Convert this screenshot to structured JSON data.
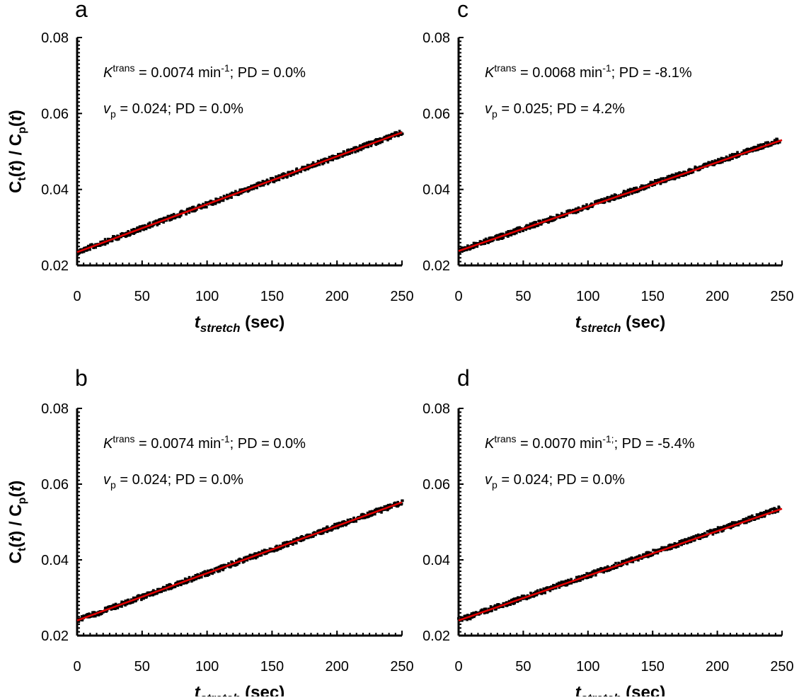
{
  "colors": {
    "data": "#000000",
    "fit": "#e00000"
  },
  "chart_data": [
    {
      "panel": "a",
      "type": "scatter",
      "xlabel_main": "t",
      "xlabel_sub": "stretch",
      "xlabel_unit": " (sec)",
      "ylabel_parts": [
        "C",
        "t",
        "(",
        "t",
        ") / C",
        "p",
        "(",
        "t",
        ")"
      ],
      "xlim": [
        0,
        250
      ],
      "ylim": [
        0.02,
        0.08
      ],
      "xticks": [
        "0",
        "50",
        "100",
        "150",
        "200",
        "250"
      ],
      "yticks": [
        "0.02",
        "0.04",
        "0.06",
        "0.08"
      ],
      "fit": {
        "x": [
          0,
          250
        ],
        "y": [
          0.0235,
          0.055
        ]
      },
      "series": [
        {
          "x_range": [
            0,
            250
          ],
          "y_start": 0.0235,
          "y_end": 0.055
        }
      ],
      "annotations": [
        {
          "text": "Ktrans = 0.0074 min-1; PD = 0.0%",
          "parts": [
            [
              "K",
              "i"
            ],
            [
              "trans",
              "sup"
            ],
            [
              " = 0.0074 min",
              ""
            ],
            [
              "-1",
              "sup"
            ],
            [
              "; PD = 0.0%",
              ""
            ]
          ]
        },
        {
          "text": "vp = 0.024; PD = 0.0%",
          "parts": [
            [
              "v",
              "i"
            ],
            [
              "p",
              "sub"
            ],
            [
              " = 0.024; PD = 0.0%",
              ""
            ]
          ]
        }
      ]
    },
    {
      "panel": "c",
      "type": "scatter",
      "xlabel_main": "t",
      "xlabel_sub": "stretch",
      "xlabel_unit": " (sec)",
      "ylabel_parts": [],
      "xlim": [
        0,
        250
      ],
      "ylim": [
        0.02,
        0.08
      ],
      "xticks": [
        "0",
        "50",
        "100",
        "150",
        "200",
        "250"
      ],
      "yticks": [
        "0.02",
        "0.04",
        "0.06",
        "0.08"
      ],
      "fit": {
        "x": [
          0,
          250
        ],
        "y": [
          0.0238,
          0.053
        ]
      },
      "series": [
        {
          "x_range": [
            0,
            248
          ],
          "y_start": 0.0238,
          "y_end": 0.053
        }
      ],
      "annotations": [
        {
          "text": "Ktrans = 0.0068 min-1; PD = -8.1%",
          "parts": [
            [
              "K",
              "i"
            ],
            [
              "trans",
              "sup"
            ],
            [
              " = 0.0068 min",
              ""
            ],
            [
              "-1",
              "sup"
            ],
            [
              "; PD = -8.1%",
              ""
            ]
          ]
        },
        {
          "text": "vp = 0.025; PD = 4.2%",
          "parts": [
            [
              "v",
              "i"
            ],
            [
              "p",
              "sub"
            ],
            [
              " = 0.025; PD = 4.2%",
              ""
            ]
          ]
        }
      ]
    },
    {
      "panel": "b",
      "type": "scatter",
      "xlabel_main": "t",
      "xlabel_sub": "stretch",
      "xlabel_unit": " (sec)",
      "ylabel_parts": [
        "C",
        "t",
        "(",
        "t",
        ") / C",
        "p",
        "(",
        "t",
        ")"
      ],
      "xlim": [
        0,
        250
      ],
      "ylim": [
        0.02,
        0.08
      ],
      "xticks": [
        "0",
        "50",
        "100",
        "150",
        "200",
        "250"
      ],
      "yticks": [
        "0.02",
        "0.04",
        "0.06",
        "0.08"
      ],
      "fit": {
        "x": [
          0,
          250
        ],
        "y": [
          0.024,
          0.0552
        ]
      },
      "series": [
        {
          "x_range": [
            0,
            250
          ],
          "y_start": 0.024,
          "y_end": 0.0552
        }
      ],
      "annotations": [
        {
          "text": "Ktrans = 0.0074 min-1; PD = 0.0%",
          "parts": [
            [
              "K",
              "i"
            ],
            [
              "trans",
              "sup"
            ],
            [
              " = 0.0074 min",
              ""
            ],
            [
              "-1",
              "sup"
            ],
            [
              "; PD = 0.0%",
              ""
            ]
          ]
        },
        {
          "text": "vp = 0.024; PD = 0.0%",
          "parts": [
            [
              "v",
              "i"
            ],
            [
              "p",
              "sub"
            ],
            [
              " = 0.024; PD = 0.0%",
              ""
            ]
          ]
        }
      ]
    },
    {
      "panel": "d",
      "type": "scatter",
      "xlabel_main": "t",
      "xlabel_sub": "stretch",
      "xlabel_unit": " (sec)",
      "ylabel_parts": [],
      "xlim": [
        0,
        250
      ],
      "ylim": [
        0.02,
        0.08
      ],
      "xticks": [
        "0",
        "50",
        "100",
        "150",
        "200",
        "250"
      ],
      "yticks": [
        "0.02",
        "0.04",
        "0.06",
        "0.08"
      ],
      "fit": {
        "x": [
          0,
          250
        ],
        "y": [
          0.024,
          0.0535
        ]
      },
      "series": [
        {
          "x_range": [
            0,
            248
          ],
          "y_start": 0.024,
          "y_end": 0.0535
        }
      ],
      "annotations": [
        {
          "text": "Ktrans = 0.0070 min-1;; PD = -5.4%",
          "parts": [
            [
              "K",
              "i"
            ],
            [
              "trans",
              "sup"
            ],
            [
              " = 0.0070 min",
              ""
            ],
            [
              "-1;",
              "sup"
            ],
            [
              "; PD = -5.4%",
              ""
            ]
          ]
        },
        {
          "text": "vp = 0.024; PD = 0.0%",
          "parts": [
            [
              "v",
              "i"
            ],
            [
              "p",
              "sub"
            ],
            [
              " = 0.024; PD = 0.0%",
              ""
            ]
          ]
        }
      ]
    }
  ]
}
